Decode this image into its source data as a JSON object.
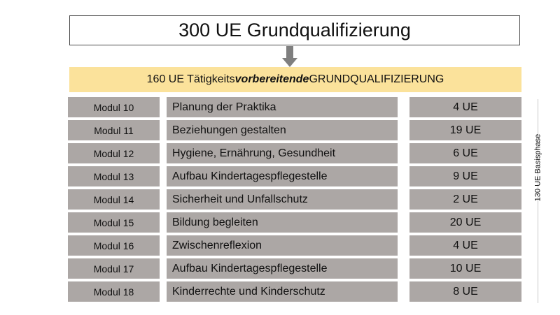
{
  "title": "300 UE Grundqualifizierung",
  "banner": {
    "prefix": "160 UE Tätigkeits",
    "emphasis": "vorbereitende",
    "suffix": " GRUNDQUALIFIZIERUNG"
  },
  "modules": [
    {
      "modul": "Modul 10",
      "name": "Planung der Praktika",
      "ue": "4 UE"
    },
    {
      "modul": "Modul 11",
      "name": "Beziehungen gestalten",
      "ue": "19 UE"
    },
    {
      "modul": "Modul 12",
      "name": "Hygiene, Ernährung, Gesundheit",
      "ue": "6 UE"
    },
    {
      "modul": "Modul 13",
      "name": "Aufbau Kindertagespflegestelle",
      "ue": "9 UE"
    },
    {
      "modul": "Modul 14",
      "name": "Sicherheit und Unfallschutz",
      "ue": "2 UE"
    },
    {
      "modul": "Modul 15",
      "name": "Bildung begleiten",
      "ue": "20 UE"
    },
    {
      "modul": "Modul 16",
      "name": "Zwischenreflexion",
      "ue": "4 UE"
    },
    {
      "modul": "Modul 17",
      "name": "Aufbau Kindertagespflegestelle",
      "ue": "10 UE"
    },
    {
      "modul": "Modul 18",
      "name": "Kinderrechte und Kinderschutz",
      "ue": "8 UE"
    }
  ],
  "side_label": "130 UE Basisphase",
  "colors": {
    "banner": "#fbe29b",
    "cell": "#aca7a5",
    "arrow": "#7f7f7f"
  }
}
